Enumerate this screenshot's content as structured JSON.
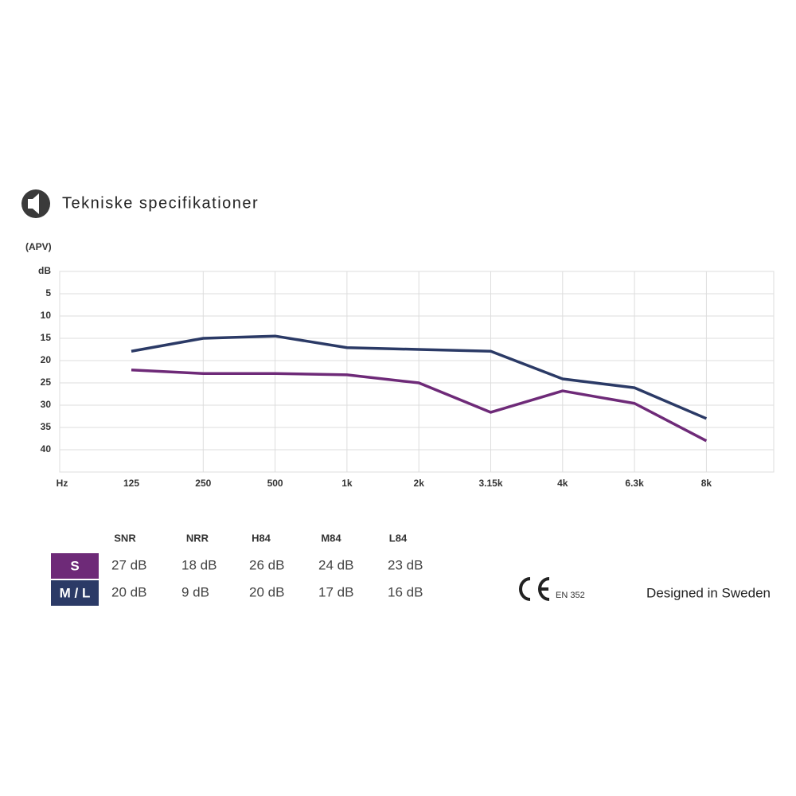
{
  "header": {
    "title": "Tekniske specifikationer"
  },
  "chart_data": {
    "type": "line",
    "y_label": "(APV)",
    "x_label": "Hz",
    "categories": [
      "125",
      "250",
      "500",
      "1k",
      "2k",
      "3.15k",
      "4k",
      "6.3k",
      "8k"
    ],
    "series": [
      {
        "name": "S",
        "color": "#6e2a78",
        "values": [
          22.1,
          22.9,
          22.9,
          23.2,
          25.0,
          31.6,
          26.8,
          29.6,
          38.0
        ]
      },
      {
        "name": "M / L",
        "color": "#2b3a66",
        "values": [
          17.9,
          15.0,
          14.5,
          17.1,
          17.5,
          17.9,
          24.1,
          26.1,
          33.0
        ]
      }
    ],
    "ylim": [
      0,
      45
    ],
    "y_inverted": true,
    "yticks": [
      {
        "value": 0,
        "label": "dB"
      },
      5,
      10,
      15,
      20,
      25,
      30,
      35,
      40
    ],
    "grid": true
  },
  "table": {
    "columns": [
      "SNR",
      "NRR",
      "H84",
      "M84",
      "L84"
    ],
    "rows": [
      [
        "27 dB",
        "18 dB",
        "26 dB",
        "24 dB",
        "23 dB"
      ],
      [
        "20 dB",
        "9 dB",
        "20 dB",
        "17 dB",
        "16 dB"
      ]
    ]
  },
  "footer": {
    "standard": "EN 352",
    "tagline": "Designed in Sweden"
  }
}
